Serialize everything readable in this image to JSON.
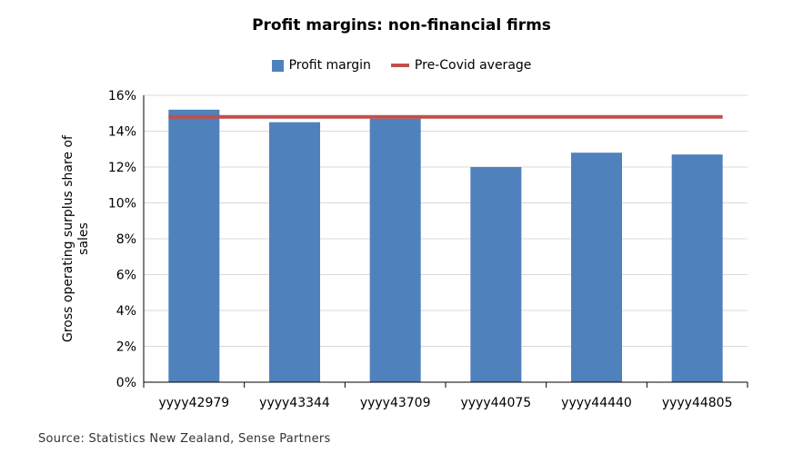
{
  "chart_data": {
    "type": "bar",
    "title": "Profit margins: non-financial firms",
    "ylabel": "Gross operating surplus share of sales",
    "xlabel": "",
    "categories": [
      "yyyy42979",
      "yyyy43344",
      "yyyy43709",
      "yyyy44075",
      "yyyy44440",
      "yyyy44805"
    ],
    "series": [
      {
        "name": "Profit margin",
        "type": "bar",
        "color": "#4f81bd",
        "values": [
          15.2,
          14.5,
          14.7,
          12.0,
          12.8,
          12.7
        ]
      },
      {
        "name": "Pre-Covid average",
        "type": "line",
        "color": "#c0504d",
        "values": [
          14.8,
          14.8,
          14.8,
          14.8,
          14.8,
          14.8
        ]
      }
    ],
    "ylim": [
      0,
      16
    ],
    "yticks": [
      "0%",
      "2%",
      "4%",
      "6%",
      "8%",
      "10%",
      "12%",
      "14%",
      "16%"
    ],
    "grid": true,
    "legend_position": "top"
  },
  "source": "Source: Statistics New Zealand, Sense Partners"
}
